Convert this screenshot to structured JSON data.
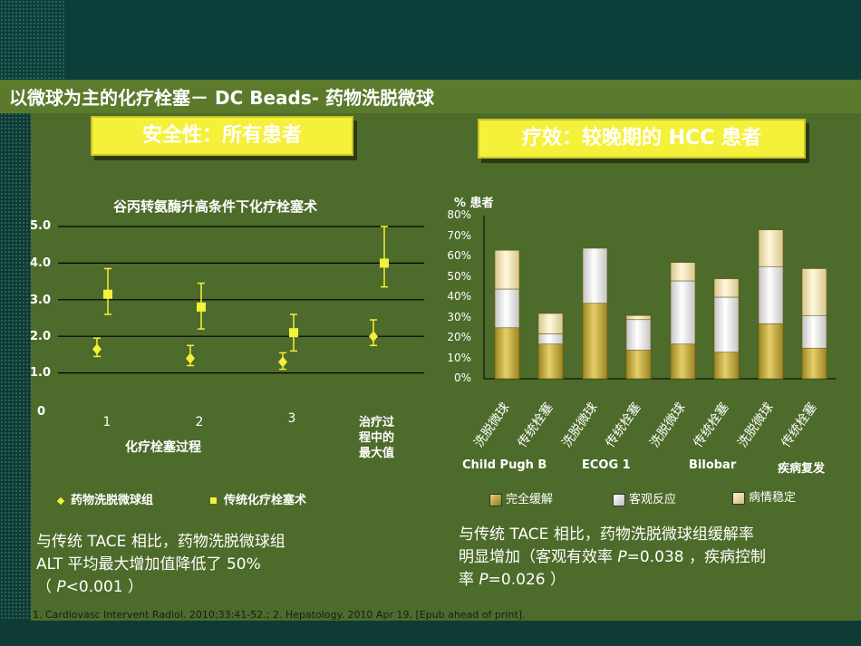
{
  "slide": {
    "title": "以微球为主的化疗栓塞－ DC Beads- 药物洗脱微球",
    "footnote": "1. Cardiovasc Intervent Radiol. 2010;33:41-52.;  2. Hepatology. 2010 Apr 19. [Epub ahead of print]."
  },
  "left": {
    "banner": "安全性：所有患者",
    "note_line1": "与传统 TACE 相比，药物洗脱微球组",
    "note_line2": "ALT 平均最大增加值降低了 50%",
    "note_line3_pre": "（ ",
    "note_line3_p": "P",
    "note_line3_post": "<0.001 ）"
  },
  "right": {
    "banner": "疗效：较晚期的 HCC 患者",
    "note_line1": "与传统 TACE 相比，药物洗脱微球组缓解率",
    "note_line2_pre": "明显增加（客观有效率 ",
    "note_line2_p": "P",
    "note_line2_post": "=0.038 ，疾病控制",
    "note_line3_pre": "率 ",
    "note_line3_p": "P",
    "note_line3_post": "=0.026 ）"
  },
  "colors": {
    "accent_yellow": "#f5f03a",
    "complete_response": "#b09a2c",
    "objective_response": "#ffffff",
    "stable_disease": "#f2e3b0"
  },
  "chart_data": [
    {
      "type": "scatter",
      "title": "谷丙转氨酶升高条件下化疗栓塞术",
      "xlabel": "化疗栓塞过程",
      "ylabel": "",
      "ylim": [
        0,
        5
      ],
      "y_ticks": [
        "5.0",
        "4.0",
        "3.0",
        "2.0",
        "1.0",
        "0"
      ],
      "categories": [
        "1",
        "2",
        "3",
        "治疗过程中的最大值"
      ],
      "series": [
        {
          "name": "药物洗脱微球组",
          "marker": "diamond",
          "values": [
            1.65,
            1.4,
            1.3,
            2.0
          ],
          "err_low": [
            1.45,
            1.2,
            1.1,
            1.75
          ],
          "err_high": [
            1.95,
            1.75,
            1.55,
            2.45
          ]
        },
        {
          "name": "传统化疗栓塞术",
          "marker": "square",
          "values": [
            3.15,
            2.8,
            2.1,
            4.0
          ],
          "err_low": [
            2.6,
            2.2,
            1.6,
            3.35
          ],
          "err_high": [
            3.85,
            3.45,
            2.6,
            5.0
          ]
        }
      ]
    },
    {
      "type": "bar",
      "stacked": true,
      "ylabel": "% 患者",
      "ylim": [
        0,
        80
      ],
      "y_ticks": [
        "80%",
        "70%",
        "60%",
        "50%",
        "40%",
        "30%",
        "20%",
        "10%",
        "0%"
      ],
      "groups": [
        "Child Pugh B",
        "ECOG 1",
        "Bilobar",
        "疾病复发"
      ],
      "categories": [
        "洗脱微球",
        "传统栓塞",
        "洗脱微球",
        "传统栓塞",
        "洗脱微球",
        "传统栓塞",
        "洗脱微球",
        "传统栓塞"
      ],
      "series": [
        {
          "name": "完全缓解",
          "values": [
            25,
            17,
            37,
            14,
            17,
            13,
            27,
            15
          ]
        },
        {
          "name": "客观反应",
          "values": [
            19,
            5,
            27,
            15,
            31,
            27,
            28,
            16
          ]
        },
        {
          "name": "病情稳定",
          "values": [
            19,
            10,
            0,
            2,
            9,
            9,
            18,
            23
          ]
        }
      ]
    }
  ]
}
